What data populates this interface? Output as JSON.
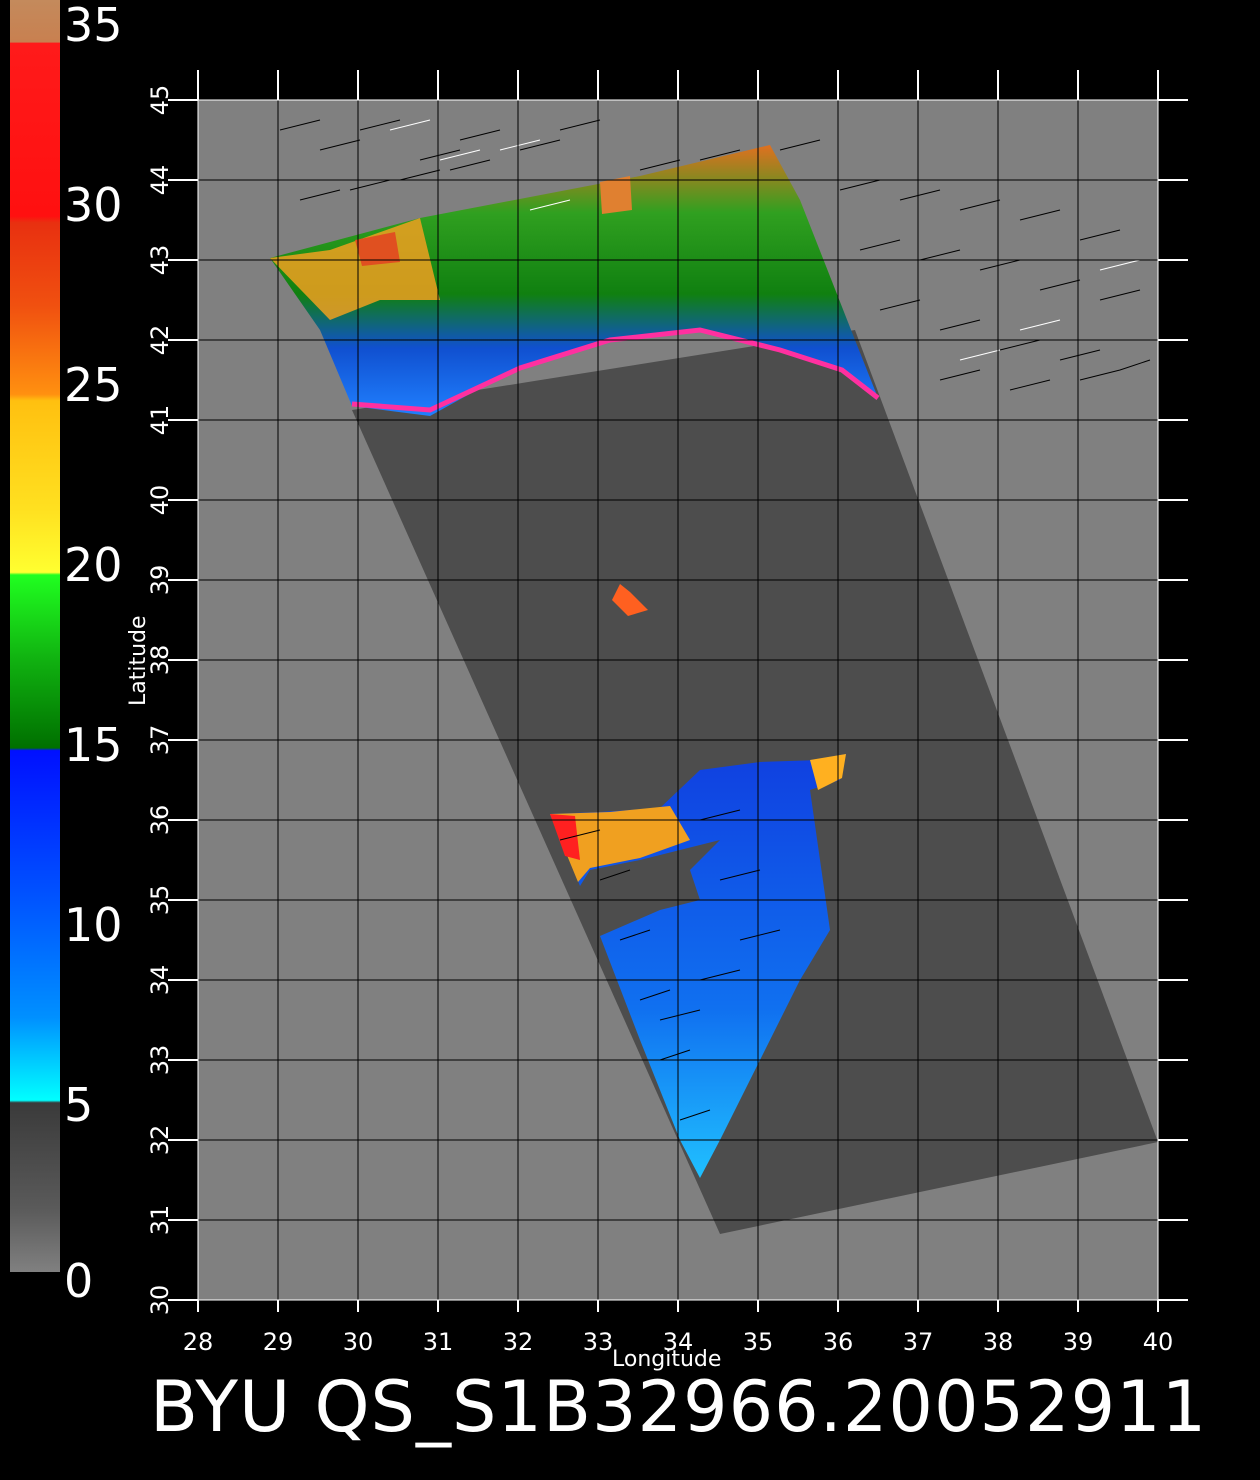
{
  "colorbar": {
    "labels": [
      "35",
      "30",
      "25",
      "20",
      "15",
      "10",
      "5",
      "0"
    ],
    "range": [
      0,
      35
    ]
  },
  "map": {
    "lon_range": [
      28,
      40
    ],
    "lat_range": [
      30,
      45
    ],
    "lon_ticks": [
      "28",
      "29",
      "30",
      "31",
      "32",
      "33",
      "34",
      "35",
      "36",
      "37",
      "38",
      "39",
      "40"
    ],
    "lat_ticks": [
      "30",
      "31",
      "32",
      "33",
      "34",
      "35",
      "36",
      "37",
      "38",
      "39",
      "40",
      "41",
      "42",
      "43",
      "44",
      "45"
    ],
    "xlabel": "Longitude",
    "ylabel": "Latitude",
    "colors": {
      "background": "#808080",
      "land": "#4d4d4d",
      "grid": "#000000"
    }
  },
  "footer": {
    "title": "BYU QS_S1B32966.20052911"
  }
}
